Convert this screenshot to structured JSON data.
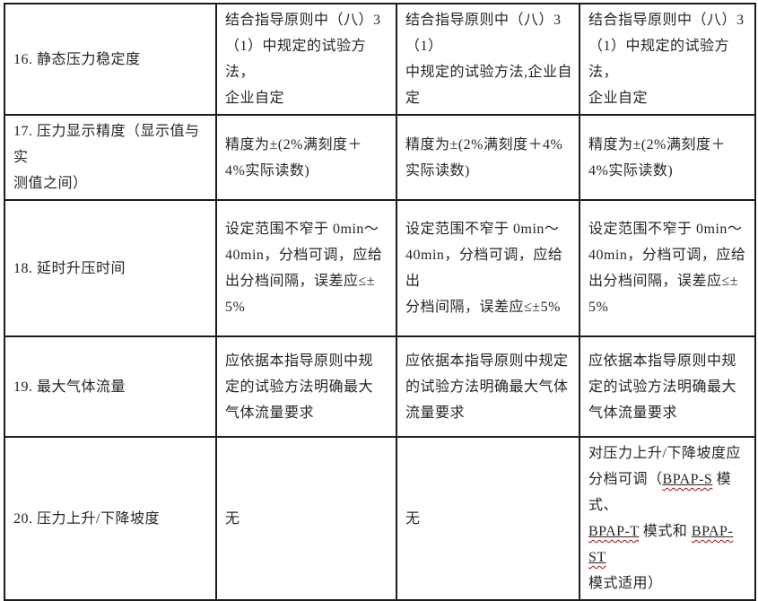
{
  "colors": {
    "border": "#1c1c1c",
    "text": "#262626",
    "squiggle": "#c00000",
    "background": "#ffffff"
  },
  "table": {
    "description": "requirements-comparison-table-rows-16-20",
    "rows": [
      {
        "label": "16. 静态压力稳定度",
        "col2": "结合指导原则中（八）3\n（1）中规定的试验方法，\n企业自定",
        "col3": "结合指导原则中（八）3（1）\n中规定的试验方法,企业自\n定",
        "col4": "结合指导原则中（八）3\n（1）中规定的试验方法，\n企业自定"
      },
      {
        "label": "17. 压力显示精度（显示值与实\n测值之间）",
        "col2": "精度为±(2%满刻度＋\n4%实际读数)",
        "col3": "精度为±(2%满刻度＋4%\n实际读数)",
        "col4": "精度为±(2%满刻度＋\n4%实际读数)"
      },
      {
        "label": "18. 延时升压时间",
        "col2": "设定范围不窄于 0min～\n40min，分档可调，应给\n出分档间隔，误差应≤±\n5%",
        "col3": "设定范围不窄于 0min～\n40min，分档可调，应给出\n分档间隔，误差应≤±5%",
        "col4": "设定范围不窄于 0min～\n40min，分档可调，应给\n出分档间隔，误差应≤±\n5%"
      },
      {
        "label": "19. 最大气体流量",
        "col2": "应依据本指导原则中规\n定的试验方法明确最大\n气体流量要求",
        "col3": "应依据本指导原则中规定\n的试验方法明确最大气体\n流量要求",
        "col4": "应依据本指导原则中规\n定的试验方法明确最大\n气体流量要求"
      },
      {
        "label": "20. 压力上升/下降坡度",
        "col2": "无",
        "col3": "无",
        "col4": "对压力上升/下降坡度应\n分档可调（BPAP-S 模式、\nBPAP-T 模式和 BPAP-ST\n模式适用）"
      }
    ]
  }
}
